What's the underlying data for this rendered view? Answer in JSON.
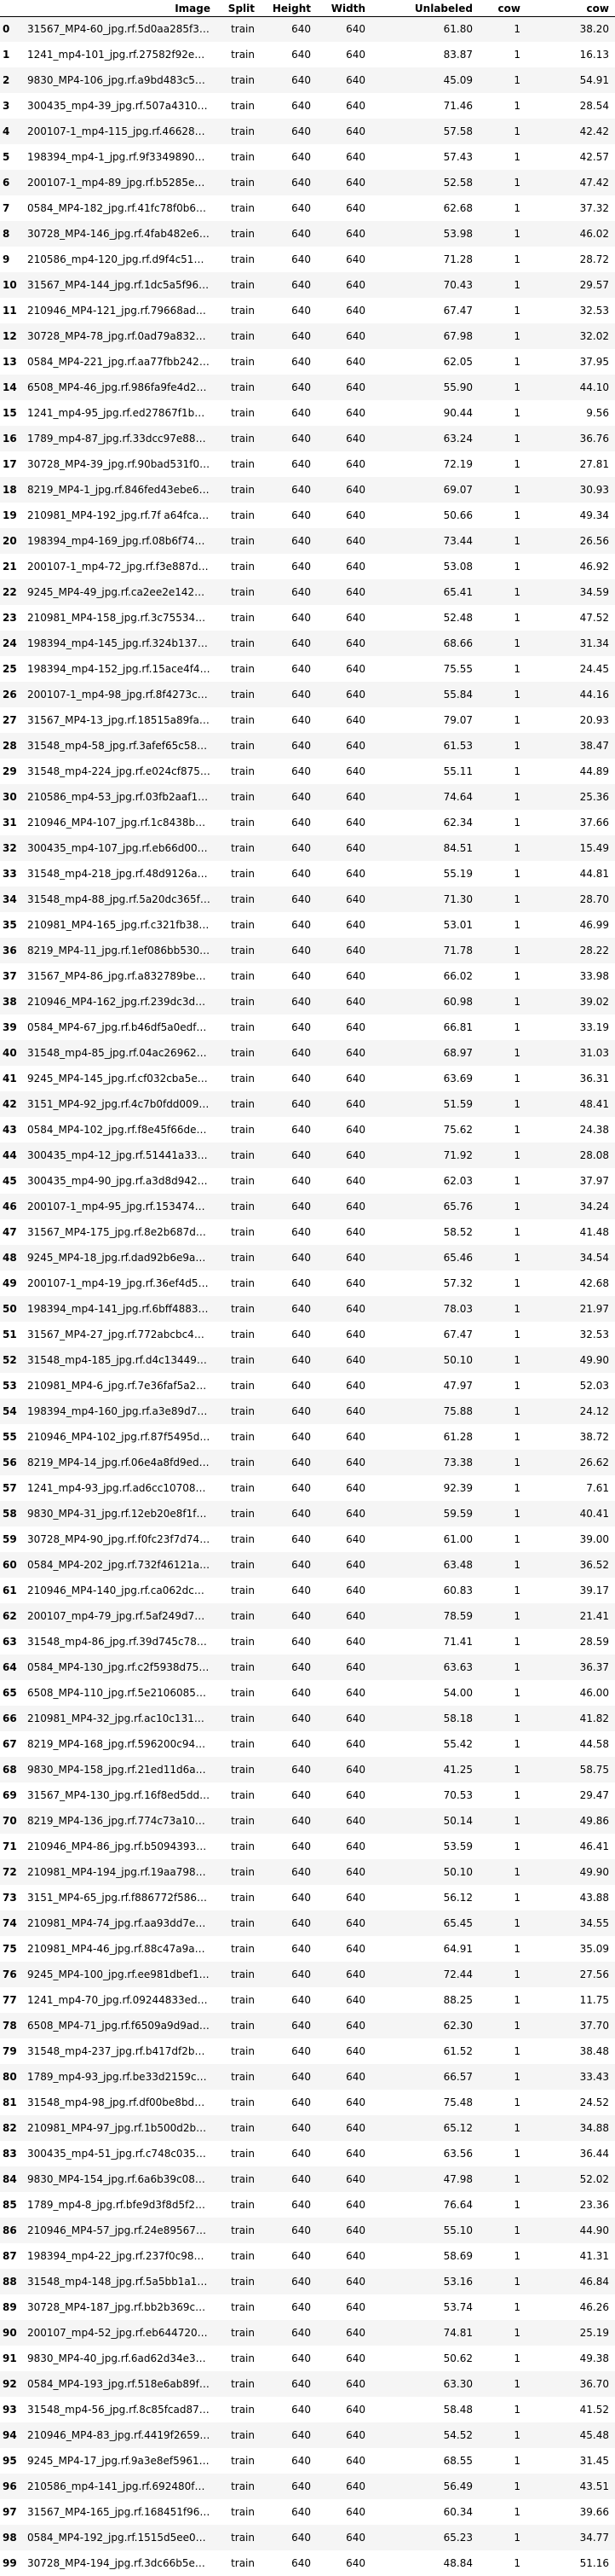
{
  "columns": [
    "",
    "Image",
    "Split",
    "Height",
    "Width",
    "Unlabeled",
    "cow",
    "cow"
  ],
  "rows": [
    [
      "0",
      "31567_MP4-60_jpg.rf.5d0aa285f3d9150a30b6d4bfe3...",
      "train",
      "640",
      "640",
      "61.80",
      "1",
      "38.20"
    ],
    [
      "1",
      "1241_mp4-101_jpg.rf.27582f92e3ac3a1ebf16d2ae2...",
      "train",
      "640",
      "640",
      "83.87",
      "1",
      "16.13"
    ],
    [
      "2",
      "9830_MP4-106_jpg.rf.a9bd483c52d903a52c2982394a...",
      "train",
      "640",
      "640",
      "45.09",
      "1",
      "54.91"
    ],
    [
      "3",
      "300435_mp4-39_jpg.rf.507a4310c949d891abef1522d...",
      "train",
      "640",
      "640",
      "71.46",
      "1",
      "28.54"
    ],
    [
      "4",
      "200107-1_mp4-115_jpg.rf.46628997f9f3339298f6c2...",
      "train",
      "640",
      "640",
      "57.58",
      "1",
      "42.42"
    ],
    [
      "5",
      "198394_mp4-1_jpg.rf.9f334989088b306981959e45b6...",
      "train",
      "640",
      "640",
      "57.43",
      "1",
      "42.57"
    ],
    [
      "6",
      "200107-1_mp4-89_jpg.rf.b5285eac633bbc94c125e49...",
      "train",
      "640",
      "640",
      "52.58",
      "1",
      "47.42"
    ],
    [
      "7",
      "0584_MP4-182_jpg.rf.41fc78f0b6066e2b3519d4b566...",
      "train",
      "640",
      "640",
      "62.68",
      "1",
      "37.32"
    ],
    [
      "8",
      "30728_MP4-146_jpg.rf.4fab482e61ce214cd2224f32f...",
      "train",
      "640",
      "640",
      "53.98",
      "1",
      "46.02"
    ],
    [
      "9",
      "210586_mp4-120_jpg.rf.d9f4c5130f77ed260811de05...",
      "train",
      "640",
      "640",
      "71.28",
      "1",
      "28.72"
    ],
    [
      "10",
      "31567_MP4-144_jpg.rf.1dc5a5f9649d8d6e123fa6...",
      "train",
      "640",
      "640",
      "70.43",
      "1",
      "29.57"
    ],
    [
      "11",
      "210946_MP4-121_jpg.rf.79668ad4713865c35e9eb874...",
      "train",
      "640",
      "640",
      "67.47",
      "1",
      "32.53"
    ],
    [
      "12",
      "30728_MP4-78_jpg.rf.0ad79a832affedcbfaaa45410d...",
      "train",
      "640",
      "640",
      "67.98",
      "1",
      "32.02"
    ],
    [
      "13",
      "0584_MP4-221_jpg.rf.aa77fbb242c68b97d0cd95c8d2...",
      "train",
      "640",
      "640",
      "62.05",
      "1",
      "37.95"
    ],
    [
      "14",
      "6508_MP4-46_jpg.rf.986fa9fe4d2bb04cc3bada111...",
      "train",
      "640",
      "640",
      "55.90",
      "1",
      "44.10"
    ],
    [
      "15",
      "1241_mp4-95_jpg.rf.ed27867f1b329abefac0169c085...",
      "train",
      "640",
      "640",
      "90.44",
      "1",
      "9.56"
    ],
    [
      "16",
      "1789_mp4-87_jpg.rf.33dcc97e88b7f9072cbaf18e7e3...",
      "train",
      "640",
      "640",
      "63.24",
      "1",
      "36.76"
    ],
    [
      "17",
      "30728_MP4-39_jpg.rf.90bad531f0a98fa377dfa1ad7d...",
      "train",
      "640",
      "640",
      "72.19",
      "1",
      "27.81"
    ],
    [
      "18",
      "8219_MP4-1_jpg.rf.846fed43ebe659fdada8d02f3a1e...",
      "train",
      "640",
      "640",
      "69.07",
      "1",
      "30.93"
    ],
    [
      "19",
      "210981_MP4-192_jpg.rf.7f a64fcad2387b328f3306ac...",
      "train",
      "640",
      "640",
      "50.66",
      "1",
      "49.34"
    ],
    [
      "20",
      "198394_mp4-169_jpg.rf.08b6f74baeb4c24af8a5f789...",
      "train",
      "640",
      "640",
      "73.44",
      "1",
      "26.56"
    ],
    [
      "21",
      "200107-1_mp4-72_jpg.rf.f3e887d585fb797093e7314...",
      "train",
      "640",
      "640",
      "53.08",
      "1",
      "46.92"
    ],
    [
      "22",
      "9245_MP4-49_jpg.rf.ca2ee2e142d37a19969895ac3d9...",
      "train",
      "640",
      "640",
      "65.41",
      "1",
      "34.59"
    ],
    [
      "23",
      "210981_MP4-158_jpg.rf.3c755347d05ee8f4f43e847c...",
      "train",
      "640",
      "640",
      "52.48",
      "1",
      "47.52"
    ],
    [
      "24",
      "198394_mp4-145_jpg.rf.324b137193f2ee347e281f83...",
      "train",
      "640",
      "640",
      "68.66",
      "1",
      "31.34"
    ],
    [
      "25",
      "198394_mp4-152_jpg.rf.15ace4f41a31822cb1ff6fb2...",
      "train",
      "640",
      "640",
      "75.55",
      "1",
      "24.45"
    ],
    [
      "26",
      "200107-1_mp4-98_jpg.rf.8f4273ced3bc0280aff6a22...",
      "train",
      "640",
      "640",
      "55.84",
      "1",
      "44.16"
    ],
    [
      "27",
      "31567_MP4-13_jpg.rf.18515a89fa0919b03add5a6a4c...",
      "train",
      "640",
      "640",
      "79.07",
      "1",
      "20.93"
    ],
    [
      "28",
      "31548_mp4-58_jpg.rf.3afef65c58d83252a17758c61c...",
      "train",
      "640",
      "640",
      "61.53",
      "1",
      "38.47"
    ],
    [
      "29",
      "31548_mp4-224_jpg.rf.e024cf87589340b9edb350d4e...",
      "train",
      "640",
      "640",
      "55.11",
      "1",
      "44.89"
    ],
    [
      "30",
      "210586_mp4-53_jpg.rf.03fb2aaf1e45649577db6cfc9...",
      "train",
      "640",
      "640",
      "74.64",
      "1",
      "25.36"
    ],
    [
      "31",
      "210946_MP4-107_jpg.rf.1c8438b2c26f51413b14d4f67...",
      "train",
      "640",
      "640",
      "62.34",
      "1",
      "37.66"
    ],
    [
      "32",
      "300435_mp4-107_jpg.rf.eb66d00b0c9fa46d1f3829e1...",
      "train",
      "640",
      "640",
      "84.51",
      "1",
      "15.49"
    ],
    [
      "33",
      "31548_mp4-218_jpg.rf.48d9126a406bb4ff8b2aee6bb...",
      "train",
      "640",
      "640",
      "55.19",
      "1",
      "44.81"
    ],
    [
      "34",
      "31548_mp4-88_jpg.rf.5a20dc365f930730033567e3ed...",
      "train",
      "640",
      "640",
      "71.30",
      "1",
      "28.70"
    ],
    [
      "35",
      "210981_MP4-165_jpg.rf.c321fb387a0dea816ee68c44...",
      "train",
      "640",
      "640",
      "53.01",
      "1",
      "46.99"
    ],
    [
      "36",
      "8219_MP4-11_jpg.rf.1ef086bb530abdd60644dd40aa5...",
      "train",
      "640",
      "640",
      "71.78",
      "1",
      "28.22"
    ],
    [
      "37",
      "31567_MP4-86_jpg.rf.a832789be6b8e4277077c925db...",
      "train",
      "640",
      "640",
      "66.02",
      "1",
      "33.98"
    ],
    [
      "38",
      "210946_MP4-162_jpg.rf.239dc3d5d212b87fd3939798...",
      "train",
      "640",
      "640",
      "60.98",
      "1",
      "39.02"
    ],
    [
      "39",
      "0584_MP4-67_jpg.rf.b46df5a0edfac80bcd5e44f91d0...",
      "train",
      "640",
      "640",
      "66.81",
      "1",
      "33.19"
    ],
    [
      "40",
      "31548_mp4-85_jpg.rf.04ac26962da37f075dbe2853ac...",
      "train",
      "640",
      "640",
      "68.97",
      "1",
      "31.03"
    ],
    [
      "41",
      "9245_MP4-145_jpg.rf.cf032cba5e8eb3d7b5bf2cbae0...",
      "train",
      "640",
      "640",
      "63.69",
      "1",
      "36.31"
    ],
    [
      "42",
      "3151_MP4-92_jpg.rf.4c7b0fdd00982946a78d6f82c93...",
      "train",
      "640",
      "640",
      "51.59",
      "1",
      "48.41"
    ],
    [
      "43",
      "0584_MP4-102_jpg.rf.f8e45f66de958f6c77e04d04d...",
      "train",
      "640",
      "640",
      "75.62",
      "1",
      "24.38"
    ],
    [
      "44",
      "300435_mp4-12_jpg.rf.51441a33c04e2fc293dc2dcdb...",
      "train",
      "640",
      "640",
      "71.92",
      "1",
      "28.08"
    ],
    [
      "45",
      "300435_mp4-90_jpg.rf.a3d8d9427c24400257ad1b074...",
      "train",
      "640",
      "640",
      "62.03",
      "1",
      "37.97"
    ],
    [
      "46",
      "200107-1_mp4-95_jpg.rf.15347430f9f8a734c44c9e8e...",
      "train",
      "640",
      "640",
      "65.76",
      "1",
      "34.24"
    ],
    [
      "47",
      "31567_MP4-175_jpg.rf.8e2b687de27e0ab09d5fba43f...",
      "train",
      "640",
      "640",
      "58.52",
      "1",
      "41.48"
    ],
    [
      "48",
      "9245_MP4-18_jpg.rf.dad92b6e9aa0471cc145d150289...",
      "train",
      "640",
      "640",
      "65.46",
      "1",
      "34.54"
    ],
    [
      "49",
      "200107-1_mp4-19_jpg.rf.36ef4d5fca58ebf7496ada8...",
      "train",
      "640",
      "640",
      "57.32",
      "1",
      "42.68"
    ],
    [
      "50",
      "198394_mp4-141_jpg.rf.6bff4883ef287bb43546c2b2...",
      "train",
      "640",
      "640",
      "78.03",
      "1",
      "21.97"
    ],
    [
      "51",
      "31567_MP4-27_jpg.rf.772abcbc42632f61e12a3b3e85...",
      "train",
      "640",
      "640",
      "67.47",
      "1",
      "32.53"
    ],
    [
      "52",
      "31548_mp4-185_jpg.rf.d4c134497450fcc3cc4aa6bfa...",
      "train",
      "640",
      "640",
      "50.10",
      "1",
      "49.90"
    ],
    [
      "53",
      "210981_MP4-6_jpg.rf.7e36faf5a225c859487b1e3d5d...",
      "train",
      "640",
      "640",
      "47.97",
      "1",
      "52.03"
    ],
    [
      "54",
      "198394_mp4-160_jpg.rf.a3e89d7d48a5df9d502b2483...",
      "train",
      "640",
      "640",
      "75.88",
      "1",
      "24.12"
    ],
    [
      "55",
      "210946_MP4-102_jpg.rf.87f5495d300b018569c63f91...",
      "train",
      "640",
      "640",
      "61.28",
      "1",
      "38.72"
    ],
    [
      "56",
      "8219_MP4-14_jpg.rf.06e4a8fd9edeaeaf70157bc0daf...",
      "train",
      "640",
      "640",
      "73.38",
      "1",
      "26.62"
    ],
    [
      "57",
      "1241_mp4-93_jpg.rf.ad6cc10708db30019d59be7d186...",
      "train",
      "640",
      "640",
      "92.39",
      "1",
      "7.61"
    ],
    [
      "58",
      "9830_MP4-31_jpg.rf.12eb20e8f1fc0cc380f356e1c31...",
      "train",
      "640",
      "640",
      "59.59",
      "1",
      "40.41"
    ],
    [
      "59",
      "30728_MP4-90_jpg.rf.f0fc23f7d74d5a73e69031cec9...",
      "train",
      "640",
      "640",
      "61.00",
      "1",
      "39.00"
    ],
    [
      "60",
      "0584_MP4-202_jpg.rf.732f46121a994020a2f8c481b0...",
      "train",
      "640",
      "640",
      "63.48",
      "1",
      "36.52"
    ],
    [
      "61",
      "210946_MP4-140_jpg.rf.ca062dc177b194f51f6e60ba...",
      "train",
      "640",
      "640",
      "60.83",
      "1",
      "39.17"
    ],
    [
      "62",
      "200107_mp4-79_jpg.rf.5af249d77079e6f6154 7baf52...",
      "train",
      "640",
      "640",
      "78.59",
      "1",
      "21.41"
    ],
    [
      "63",
      "31548_mp4-86_jpg.rf.39d745c7895222f87bb5554cbd...",
      "train",
      "640",
      "640",
      "71.41",
      "1",
      "28.59"
    ],
    [
      "64",
      "0584_MP4-130_jpg.rf.c2f5938d75572f3cd4fd013968...",
      "train",
      "640",
      "640",
      "63.63",
      "1",
      "36.37"
    ],
    [
      "65",
      "6508_MP4-110_jpg.rf.5e2106085974e9f6a152a7245 9...",
      "train",
      "640",
      "640",
      "54.00",
      "1",
      "46.00"
    ],
    [
      "66",
      "210981_MP4-32_jpg.rf.ac10c1311c70c2945fe39eb1f...",
      "train",
      "640",
      "640",
      "58.18",
      "1",
      "41.82"
    ],
    [
      "67",
      "8219_MP4-168_jpg.rf.596200c945a47b9cadc4fb8039...",
      "train",
      "640",
      "640",
      "55.42",
      "1",
      "44.58"
    ],
    [
      "68",
      "9830_MP4-158_jpg.rf.21ed11d6a2a772d33db2fc922a...",
      "train",
      "640",
      "640",
      "41.25",
      "1",
      "58.75"
    ],
    [
      "69",
      "31567_MP4-130_jpg.rf.16f8ed5dd3b1d5bce4ef6e797...",
      "train",
      "640",
      "640",
      "70.53",
      "1",
      "29.47"
    ],
    [
      "70",
      "8219_MP4-136_jpg.rf.774c73a10853588ef80494d6b6...",
      "train",
      "640",
      "640",
      "50.14",
      "1",
      "49.86"
    ],
    [
      "71",
      "210946_MP4-86_jpg.rf.b50943936d6727442c21233c3...",
      "train",
      "640",
      "640",
      "53.59",
      "1",
      "46.41"
    ],
    [
      "72",
      "210981_MP4-194_jpg.rf.19aa798a18a81a5c5d29fbab...",
      "train",
      "640",
      "640",
      "50.10",
      "1",
      "49.90"
    ],
    [
      "73",
      "3151_MP4-65_jpg.rf.f886772f586f661ed7132f173f...",
      "train",
      "640",
      "640",
      "56.12",
      "1",
      "43.88"
    ],
    [
      "74",
      "210981_MP4-74_jpg.rf.aa93dd7e8b2f2dd90c299ef90...",
      "train",
      "640",
      "640",
      "65.45",
      "1",
      "34.55"
    ],
    [
      "75",
      "210981_MP4-46_jpg.rf.88c47a9aa8d911fc30b49ab36...",
      "train",
      "640",
      "640",
      "64.91",
      "1",
      "35.09"
    ],
    [
      "76",
      "9245_MP4-100_jpg.rf.ee981dbef10f20b5c2f885a981...",
      "train",
      "640",
      "640",
      "72.44",
      "1",
      "27.56"
    ],
    [
      "77",
      "1241_mp4-70_jpg.rf.09244833edc2ba17912e4be65ad...",
      "train",
      "640",
      "640",
      "88.25",
      "1",
      "11.75"
    ],
    [
      "78",
      "6508_MP4-71_jpg.rf.f6509a9d9ad3fedbb6d16967d7...",
      "train",
      "640",
      "640",
      "62.30",
      "1",
      "37.70"
    ],
    [
      "79",
      "31548_mp4-237_jpg.rf.b417df2bcc4a65ccb51573c58...",
      "train",
      "640",
      "640",
      "61.52",
      "1",
      "38.48"
    ],
    [
      "80",
      "1789_mp4-93_jpg.rf.be33d2159c0c9008ccc88bb3242...",
      "train",
      "640",
      "640",
      "66.57",
      "1",
      "33.43"
    ],
    [
      "81",
      "31548_mp4-98_jpg.rf.df00be8bd8c2a35cb2f1eeb452...",
      "train",
      "640",
      "640",
      "75.48",
      "1",
      "24.52"
    ],
    [
      "82",
      "210981_MP4-97_jpg.rf.1b500d2bc7847d8bea708f2d6...",
      "train",
      "640",
      "640",
      "65.12",
      "1",
      "34.88"
    ],
    [
      "83",
      "300435_mp4-51_jpg.rf.c748c035974427747438f7079...",
      "train",
      "640",
      "640",
      "63.56",
      "1",
      "36.44"
    ],
    [
      "84",
      "9830_MP4-154_jpg.rf.6a6b39c08bd2cec88e663874dc...",
      "train",
      "640",
      "640",
      "47.98",
      "1",
      "52.02"
    ],
    [
      "85",
      "1789_mp4-8_jpg.rf.bfe9d3f8d5f29ac6d4ea5412ca83...",
      "train",
      "640",
      "640",
      "76.64",
      "1",
      "23.36"
    ],
    [
      "86",
      "210946_MP4-57_jpg.rf.24e89567a53377cacff874875...",
      "train",
      "640",
      "640",
      "55.10",
      "1",
      "44.90"
    ],
    [
      "87",
      "198394_mp4-22_jpg.rf.237f0c9804a51b688f2fb2bd4...",
      "train",
      "640",
      "640",
      "58.69",
      "1",
      "41.31"
    ],
    [
      "88",
      "31548_mp4-148_jpg.rf.5a5bb1a1b4397f7b572f0eae9...",
      "train",
      "640",
      "640",
      "53.16",
      "1",
      "46.84"
    ],
    [
      "89",
      "30728_MP4-187_jpg.rf.bb2b369c64af4a5d5394ecc80...",
      "train",
      "640",
      "640",
      "53.74",
      "1",
      "46.26"
    ],
    [
      "90",
      "200107_mp4-52_jpg.rf.eb64472003abfb43c35bb3b02...",
      "train",
      "640",
      "640",
      "74.81",
      "1",
      "25.19"
    ],
    [
      "91",
      "9830_MP4-40_jpg.rf.6ad62d34e3ad3946ea2ef099655...",
      "train",
      "640",
      "640",
      "50.62",
      "1",
      "49.38"
    ],
    [
      "92",
      "0584_MP4-193_jpg.rf.518e6ab89fcee194063198 3090...",
      "train",
      "640",
      "640",
      "63.30",
      "1",
      "36.70"
    ],
    [
      "93",
      "31548_mp4-56_jpg.rf.8c85fcad87c8a00383b2b52210...",
      "train",
      "640",
      "640",
      "58.48",
      "1",
      "41.52"
    ],
    [
      "94",
      "210946_MP4-83_jpg.rf.4419f2659dab19a09adb0985d...",
      "train",
      "640",
      "640",
      "54.52",
      "1",
      "45.48"
    ],
    [
      "95",
      "9245_MP4-17_jpg.rf.9a3e8ef59611f20b7dedf767561...",
      "train",
      "640",
      "640",
      "68.55",
      "1",
      "31.45"
    ],
    [
      "96",
      "210586_mp4-141_jpg.rf.692480fc504ddf4863bc174b...",
      "train",
      "640",
      "640",
      "56.49",
      "1",
      "43.51"
    ],
    [
      "97",
      "31567_MP4-165_jpg.rf.168451f969608a17c888de225...",
      "train",
      "640",
      "640",
      "60.34",
      "1",
      "39.66"
    ],
    [
      "98",
      "0584_MP4-192_jpg.rf.1515d5ee08c05cccd8636bfb16...",
      "train",
      "640",
      "640",
      "65.23",
      "1",
      "34.77"
    ],
    [
      "99",
      "30728_MP4-194_jpg.rf.3dc66b5e30c3bf7e60d30b5c4...",
      "train",
      "640",
      "640",
      "48.84",
      "1",
      "51.16"
    ]
  ]
}
